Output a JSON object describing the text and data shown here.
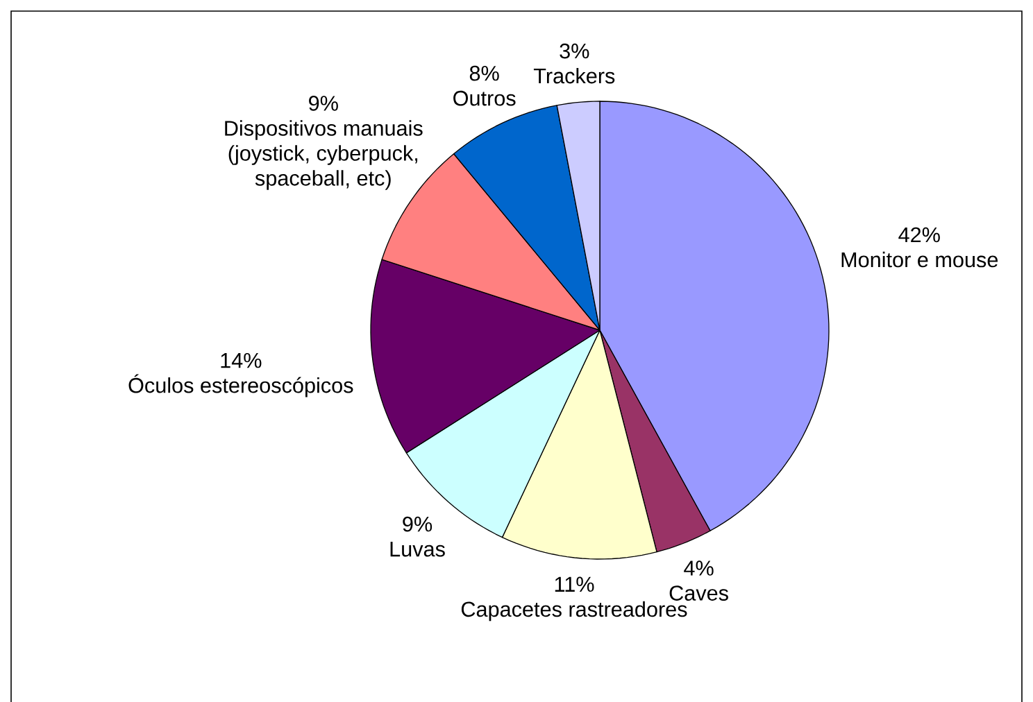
{
  "chart_data": {
    "type": "pie",
    "categories": [
      "Monitor e mouse",
      "Caves",
      "Capacetes rastreadores",
      "Luvas",
      "Óculos estereoscópicos",
      "Dispositivos manuais (joystick, cyberpuck, spaceball, etc)",
      "Outros",
      "Trackers"
    ],
    "values": [
      42,
      4,
      11,
      9,
      14,
      9,
      8,
      3
    ],
    "value_labels": [
      "42%",
      "4%",
      "11%",
      "9%",
      "14%",
      "9%",
      "8%",
      "3%"
    ],
    "colors": [
      "#9999ff",
      "#993366",
      "#ffffcc",
      "#ccffff",
      "#660066",
      "#ff8080",
      "#0066cc",
      "#ccccff"
    ]
  }
}
